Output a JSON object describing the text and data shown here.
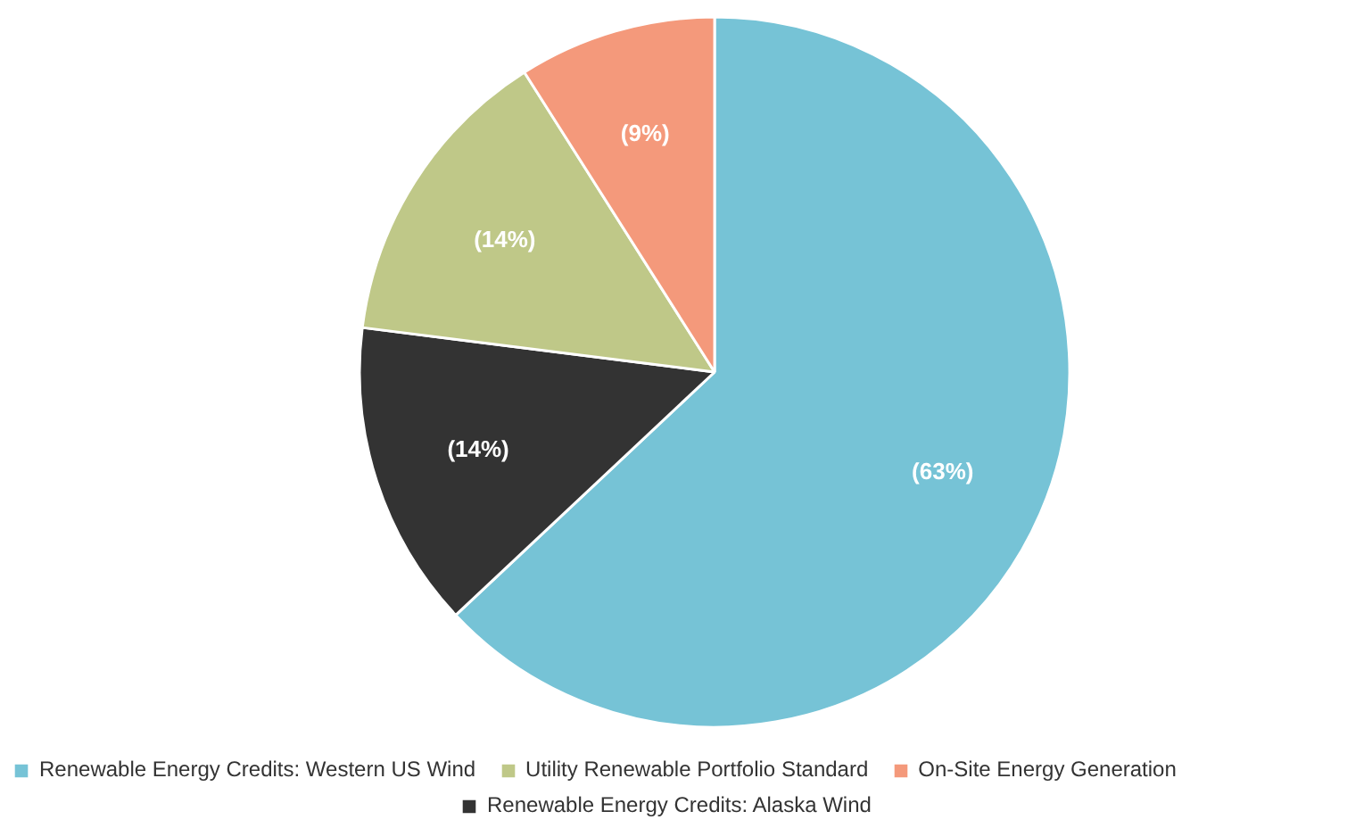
{
  "chart_data": {
    "type": "pie",
    "categories": [
      "Renewable Energy Credits: Western US Wind",
      "Renewable Energy Credits: Alaska Wind",
      "Utility Renewable Portfolio Standard",
      "On-Site Energy Generation"
    ],
    "values": [
      63,
      14,
      14,
      9
    ],
    "colors": [
      "#76c3d6",
      "#333333",
      "#bfc888",
      "#f4997b"
    ],
    "value_labels": [
      "(63%)",
      "(14%)",
      "(14%)",
      "(9%)"
    ],
    "legend": "bottom"
  }
}
